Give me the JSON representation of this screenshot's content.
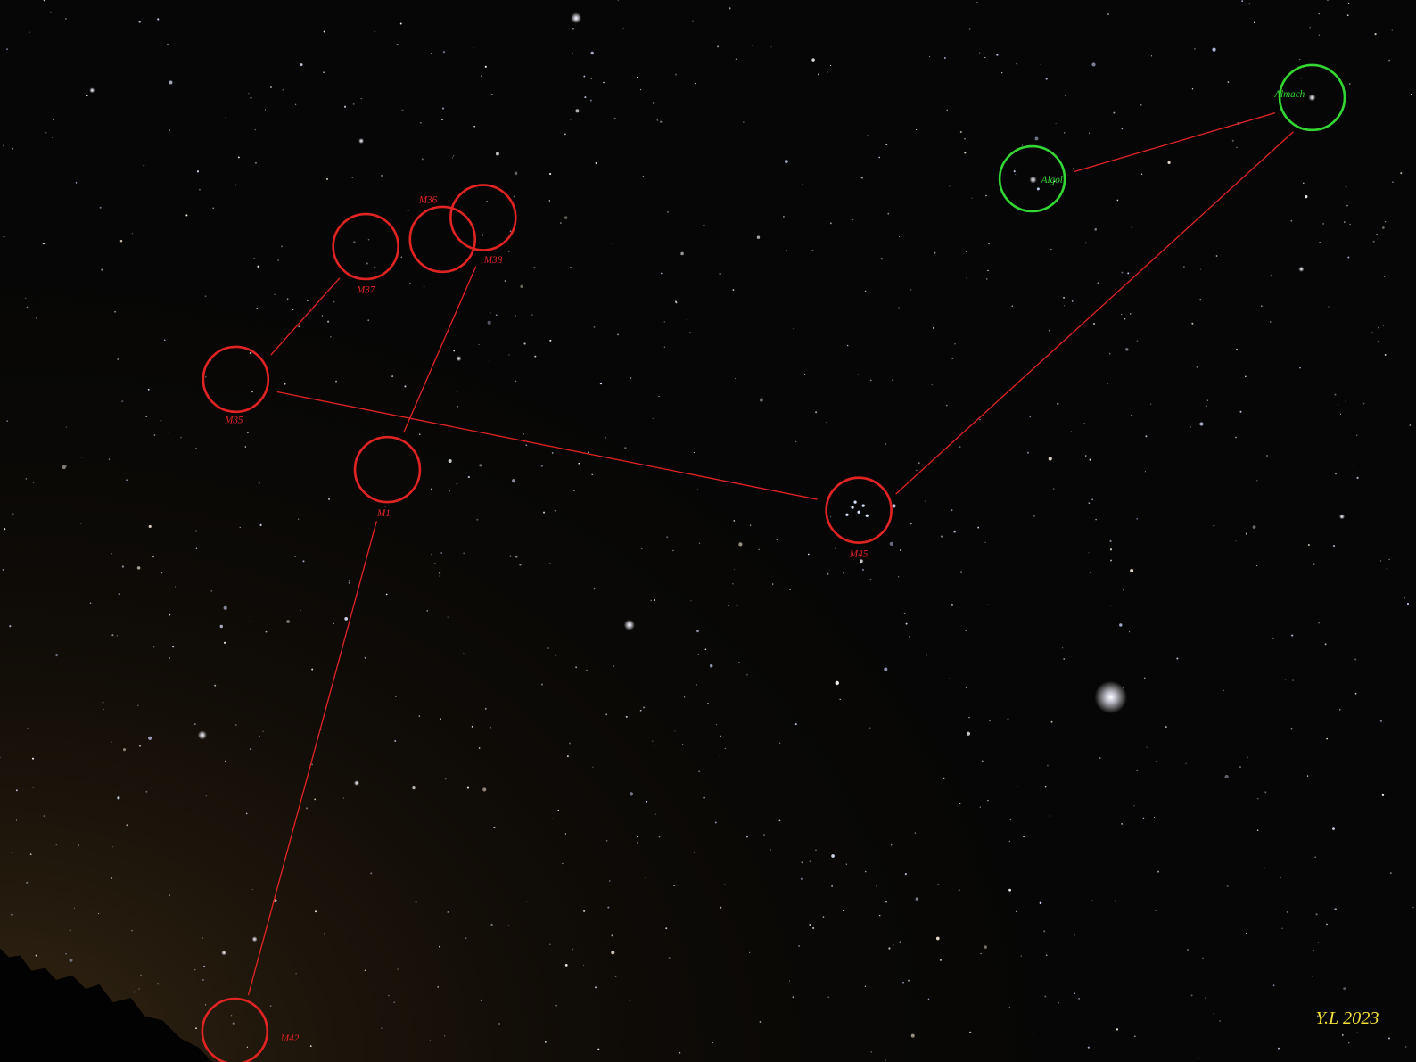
{
  "objects": [
    {
      "label": "M37"
    },
    {
      "label": "M36"
    },
    {
      "label": "M38"
    },
    {
      "label": "M35"
    },
    {
      "label": "M1"
    },
    {
      "label": "M45"
    },
    {
      "label": "M42"
    },
    {
      "label": "Algol"
    },
    {
      "label": "Almach"
    }
  ],
  "signature": "Y.L 2023"
}
